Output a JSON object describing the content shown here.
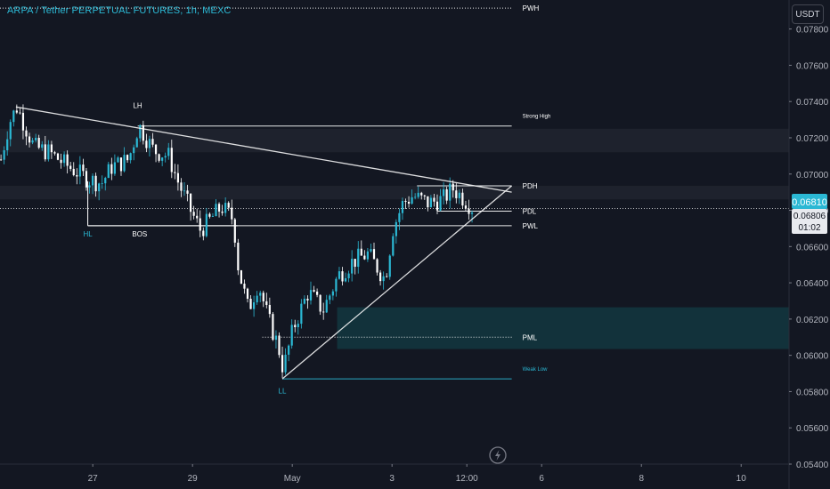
{
  "header": {
    "title": "ARPA / Tether PERPETUAL FUTURES, 1h, MEXC",
    "currency": "USDT"
  },
  "price_tags": {
    "last_price": "0.06810",
    "mark_price": "0.06806",
    "countdown": "01:02"
  },
  "colors": {
    "background": "#131722",
    "up": "#2bb8d4",
    "down": "#ffffff",
    "accent": "#2bb8d4",
    "zone_dark": "#1e222d",
    "zone_teal": "#12323b",
    "axis_text": "#b2b5be"
  },
  "chart_data": {
    "type": "candlestick",
    "title": "ARPA / Tether PERPETUAL FUTURES, 1h, MEXC",
    "y_axis": {
      "ticks": [
        "0.07800",
        "0.07600",
        "0.07400",
        "0.07200",
        "0.07000",
        "0.06800",
        "0.06600",
        "0.06400",
        "0.06200",
        "0.06000",
        "0.05800",
        "0.05600",
        "0.05400"
      ],
      "range": [
        0.054,
        0.0796
      ],
      "position": "right"
    },
    "x_axis": {
      "ticks": [
        {
          "label": "27",
          "t": 1
        },
        {
          "label": "29",
          "t": 2
        },
        {
          "label": "May",
          "t": 3
        },
        {
          "label": "3",
          "t": 4
        },
        {
          "label": "12:00",
          "t": 4.75
        },
        {
          "label": "6",
          "t": 5.5
        },
        {
          "label": "8",
          "t": 6.5
        },
        {
          "label": "10",
          "t": 7.5
        }
      ],
      "range": [
        0.07,
        7.98
      ]
    },
    "candles_path": [
      [
        0.07,
        0.0708
      ],
      [
        0.15,
        0.0728
      ],
      [
        0.23,
        0.0737
      ],
      [
        0.4,
        0.0715
      ],
      [
        0.55,
        0.0712
      ],
      [
        0.75,
        0.0704
      ],
      [
        0.95,
        0.0697
      ],
      [
        1.08,
        0.0695
      ],
      [
        1.18,
        0.0704
      ],
      [
        1.35,
        0.0708
      ],
      [
        1.45,
        0.0727
      ],
      [
        1.6,
        0.0713
      ],
      [
        1.75,
        0.071
      ],
      [
        1.85,
        0.0695
      ],
      [
        1.97,
        0.068
      ],
      [
        2.07,
        0.0669
      ],
      [
        2.17,
        0.0675
      ],
      [
        2.28,
        0.0682
      ],
      [
        2.4,
        0.0675
      ],
      [
        2.45,
        0.0648
      ],
      [
        2.55,
        0.0625
      ],
      [
        2.65,
        0.064
      ],
      [
        2.75,
        0.062
      ],
      [
        2.85,
        0.0605
      ],
      [
        2.9,
        0.0592
      ],
      [
        3.0,
        0.0615
      ],
      [
        3.15,
        0.0635
      ],
      [
        3.3,
        0.0625
      ],
      [
        3.45,
        0.0644
      ],
      [
        3.6,
        0.0652
      ],
      [
        3.75,
        0.0656
      ],
      [
        3.92,
        0.0642
      ],
      [
        4.0,
        0.067
      ],
      [
        4.1,
        0.0684
      ],
      [
        4.2,
        0.0688
      ],
      [
        4.35,
        0.0684
      ],
      [
        4.5,
        0.0686
      ],
      [
        4.6,
        0.0692
      ],
      [
        4.72,
        0.0686
      ],
      [
        4.8,
        0.0681
      ]
    ],
    "levels": [
      {
        "name": "PWH",
        "price": 0.07915,
        "t_start": 0.07,
        "t_end": 5.2,
        "color": "#ffffff"
      },
      {
        "name": "Strong High",
        "price": 0.07265,
        "t_start": 1.45,
        "t_end": 5.2,
        "color": "#ffffff"
      },
      {
        "name": "PDH",
        "price": 0.06935,
        "t_start": 4.25,
        "t_end": 5.2,
        "color": "#ffffff"
      },
      {
        "name": "PDL",
        "price": 0.06795,
        "t_start": 4.45,
        "t_end": 5.2,
        "color": "#ffffff"
      },
      {
        "name": "PWL",
        "price": 0.06715,
        "t_start": 0.95,
        "t_end": 5.2,
        "color": "#ffffff"
      },
      {
        "name": "PML",
        "price": 0.061,
        "t_start": 2.7,
        "t_end": 5.2,
        "color": "#ffffff"
      },
      {
        "name": "Weak Low",
        "price": 0.0587,
        "t_start": 2.9,
        "t_end": 5.2,
        "color": "#2bb8d4"
      }
    ],
    "zones": [
      {
        "t_start": 0.07,
        "t_end": 7.98,
        "price_top": 0.0725,
        "price_bottom": 0.0712,
        "color": "#1e222d"
      },
      {
        "t_start": 0.07,
        "t_end": 7.98,
        "price_top": 0.06935,
        "price_bottom": 0.0686,
        "color": "#1e222d"
      },
      {
        "t_start": 3.45,
        "t_end": 7.98,
        "price_top": 0.06265,
        "price_bottom": 0.06035,
        "color": "#12323b"
      }
    ],
    "trendlines": [
      {
        "name": "descending-trendline",
        "from": [
          0.23,
          0.0737
        ],
        "to": [
          5.2,
          0.069
        ]
      },
      {
        "name": "ascending-trendline",
        "from": [
          2.9,
          0.0587
        ],
        "to": [
          5.2,
          0.06935
        ]
      }
    ],
    "annotations": [
      {
        "text": "LH",
        "t": 1.45,
        "price": 0.07365,
        "color": "#ffffff"
      },
      {
        "text": "HL",
        "t": 0.95,
        "price": 0.06655,
        "color": "#2bb8d4"
      },
      {
        "text": "BOS",
        "t": 1.47,
        "price": 0.06655,
        "color": "#ffffff"
      },
      {
        "text": "LL",
        "t": 2.9,
        "price": 0.0579,
        "color": "#2bb8d4"
      }
    ],
    "bos_line": {
      "t_start": 0.95,
      "t_end": 2.45,
      "price": 0.06715,
      "hl_low": 0.06695,
      "hl_high": 0.0674
    },
    "last_price": 0.0681
  }
}
